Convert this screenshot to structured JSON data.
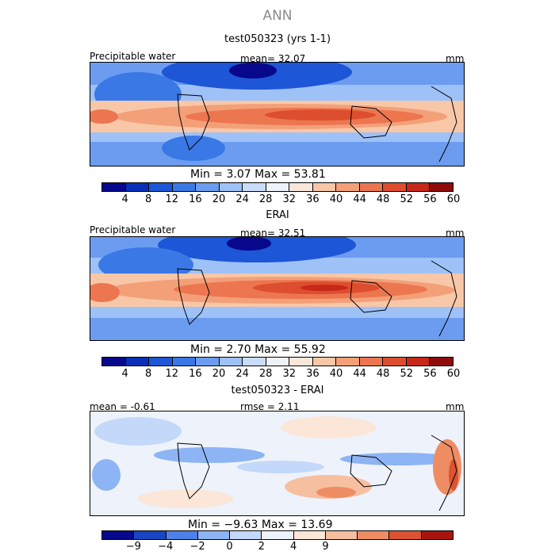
{
  "figure": {
    "title": "ANN"
  },
  "panels": [
    {
      "title": "test050323 (yrs 1-1)",
      "left_label": "Precipitable water",
      "mid_label": "mean=   32.07",
      "right_label": "mm",
      "min_max": "Min =    3.07  Max =   53.81",
      "ticks": [
        "4",
        "8",
        "12",
        "16",
        "20",
        "24",
        "28",
        "32",
        "36",
        "40",
        "44",
        "48",
        "52",
        "56",
        "60"
      ]
    },
    {
      "title": "ERAI",
      "left_label": "Precipitable water",
      "mid_label": "mean=   32.51",
      "right_label": "mm",
      "min_max": "Min =    2.70  Max =   55.92",
      "ticks": [
        "4",
        "8",
        "12",
        "16",
        "20",
        "24",
        "28",
        "32",
        "36",
        "40",
        "44",
        "48",
        "52",
        "56",
        "60"
      ]
    },
    {
      "title": "test050323 - ERAI",
      "left_label": "mean =   -0.61",
      "mid_label": "rmse =    2.11",
      "right_label": "mm",
      "min_max": "Min =   −9.63  Max =   13.69",
      "ticks": [
        "−9",
        "−4",
        "−2",
        "0",
        "2",
        "4",
        "9"
      ]
    }
  ],
  "colors": {
    "field_palette": [
      "#08088c",
      "#0a2fb8",
      "#1d56d6",
      "#3a78e6",
      "#6b9cf0",
      "#9ec1f7",
      "#c9dcfa",
      "#eef3fb",
      "#fbe7d9",
      "#f8c7a8",
      "#f3a079",
      "#ec7650",
      "#dd4e2f",
      "#c6281a",
      "#8e0c0c"
    ],
    "diff_palette": [
      "#08088c",
      "#1a45c4",
      "#4f80e8",
      "#8db4f4",
      "#c4d8f9",
      "#eef2fb",
      "#fbe6d8",
      "#f6bfa0",
      "#ee8d63",
      "#dd5233",
      "#a9140f"
    ]
  },
  "chart_data": [
    {
      "type": "heatmap",
      "title": "test050323 (yrs 1-1)",
      "variable": "Precipitable water",
      "units": "mm",
      "mean": 32.07,
      "min": 3.07,
      "max": 53.81,
      "contour_levels": [
        4,
        8,
        12,
        16,
        20,
        24,
        28,
        32,
        36,
        40,
        44,
        48,
        52,
        56,
        60
      ]
    },
    {
      "type": "heatmap",
      "title": "ERAI",
      "variable": "Precipitable water",
      "units": "mm",
      "mean": 32.51,
      "min": 2.7,
      "max": 55.92,
      "contour_levels": [
        4,
        8,
        12,
        16,
        20,
        24,
        28,
        32,
        36,
        40,
        44,
        48,
        52,
        56,
        60
      ]
    },
    {
      "type": "heatmap",
      "title": "test050323 - ERAI",
      "units": "mm",
      "mean": -0.61,
      "rmse": 2.11,
      "min": -9.63,
      "max": 13.69,
      "contour_levels": [
        -9,
        -4,
        -2,
        0,
        2,
        4,
        9
      ]
    }
  ]
}
